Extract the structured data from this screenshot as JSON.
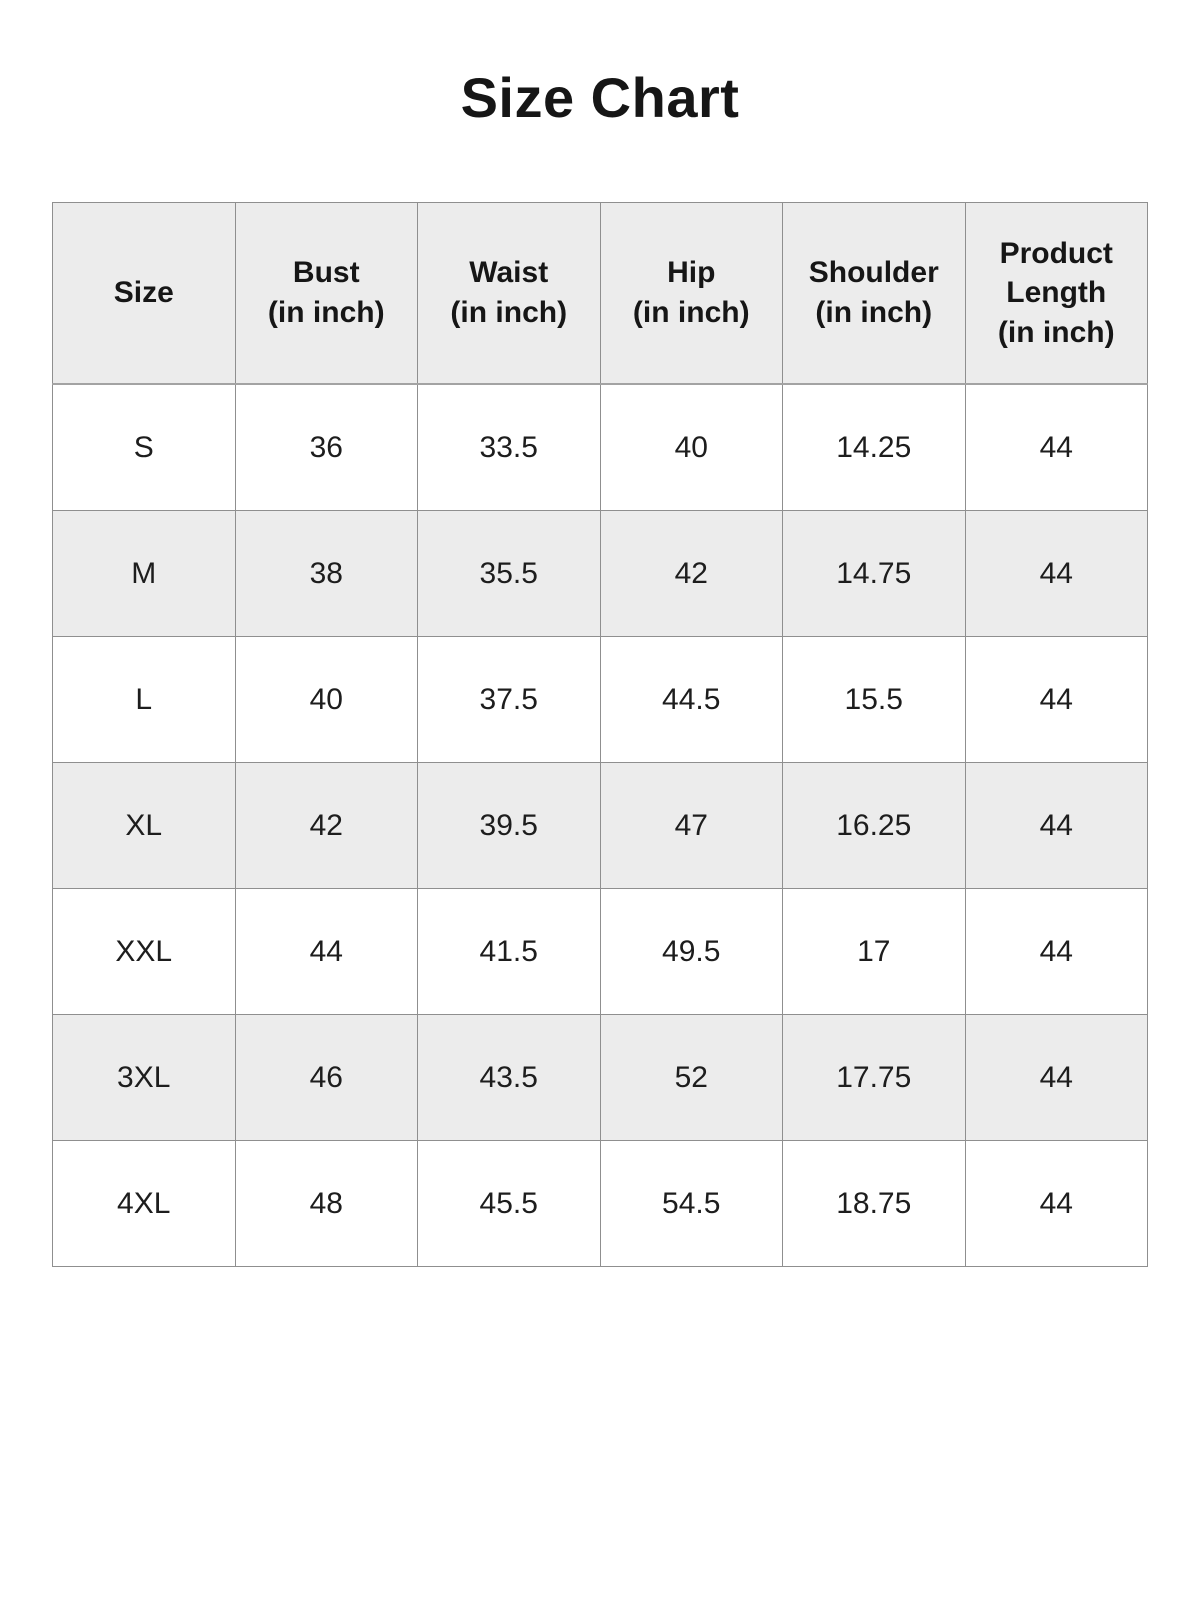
{
  "title": "Size Chart",
  "colors": {
    "stripe": "#ececec",
    "border": "#8f8f8f",
    "text": "#1d1d1d",
    "background": "#ffffff"
  },
  "table": {
    "headers": [
      "Size",
      "Bust\n(in inch)",
      "Waist\n(in inch)",
      "Hip\n(in inch)",
      "Shoulder\n(in inch)",
      "Product\nLength\n(in inch)"
    ],
    "rows": [
      {
        "size": "S",
        "bust": "36",
        "waist": "33.5",
        "hip": "40",
        "shoulder": "14.25",
        "length": "44"
      },
      {
        "size": "M",
        "bust": "38",
        "waist": "35.5",
        "hip": "42",
        "shoulder": "14.75",
        "length": "44"
      },
      {
        "size": "L",
        "bust": "40",
        "waist": "37.5",
        "hip": "44.5",
        "shoulder": "15.5",
        "length": "44"
      },
      {
        "size": "XL",
        "bust": "42",
        "waist": "39.5",
        "hip": "47",
        "shoulder": "16.25",
        "length": "44"
      },
      {
        "size": "XXL",
        "bust": "44",
        "waist": "41.5",
        "hip": "49.5",
        "shoulder": "17",
        "length": "44"
      },
      {
        "size": "3XL",
        "bust": "46",
        "waist": "43.5",
        "hip": "52",
        "shoulder": "17.75",
        "length": "44"
      },
      {
        "size": "4XL",
        "bust": "48",
        "waist": "45.5",
        "hip": "54.5",
        "shoulder": "18.75",
        "length": "44"
      }
    ]
  }
}
